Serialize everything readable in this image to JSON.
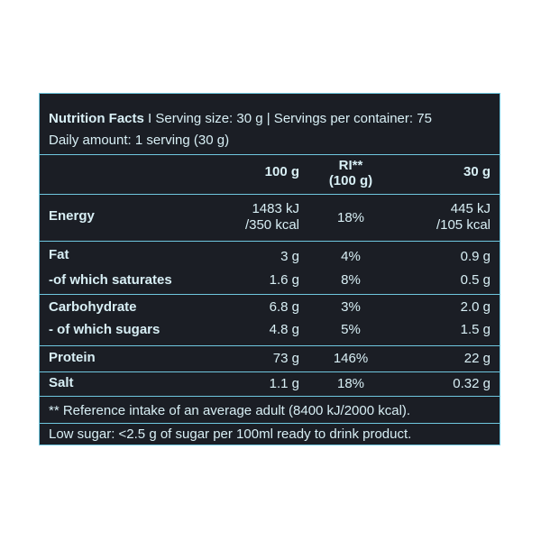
{
  "header": {
    "line1_prefix": "Nutrition Facts",
    "line1_rest": " I Serving size: 30 g | Servings per container: 75",
    "line2": "Daily amount: 1 serving (30 g)"
  },
  "columns": {
    "per100": "100 g",
    "ri_line1": "RI**",
    "ri_line2": "(100 g)",
    "per30": "30 g"
  },
  "rows": {
    "energy": {
      "label": "Energy",
      "per100_l1": "1483 kJ",
      "per100_l2": "/350 kcal",
      "ri": "18%",
      "per30_l1": "445 kJ",
      "per30_l2": "/105 kcal"
    },
    "fat": {
      "label": "Fat",
      "per100": "3 g",
      "ri": "4%",
      "per30": "0.9 g"
    },
    "saturates": {
      "label": "-of which saturates",
      "per100": "1.6 g",
      "ri": "8%",
      "per30": "0.5 g"
    },
    "carbohydrate": {
      "label": "Carbohydrate",
      "per100": "6.8 g",
      "ri": "3%",
      "per30": "2.0 g"
    },
    "sugars": {
      "label": "- of which sugars",
      "per100": "4.8 g",
      "ri": "5%",
      "per30": "1.5 g"
    },
    "protein": {
      "label": "Protein",
      "per100": "73 g",
      "ri": "146%",
      "per30": "22 g"
    },
    "salt": {
      "label": "Salt",
      "per100": "1.1 g",
      "ri": "18%",
      "per30": "0.32 g"
    }
  },
  "footnote1": "** Reference intake of an average adult (8400 kJ/2000 kcal).",
  "footnote2": "Low sugar: <2.5 g of sugar per 100ml ready to drink product.",
  "colors": {
    "background": "#1b1e25",
    "rule": "#6fc7df",
    "text": "#d8eff5"
  }
}
